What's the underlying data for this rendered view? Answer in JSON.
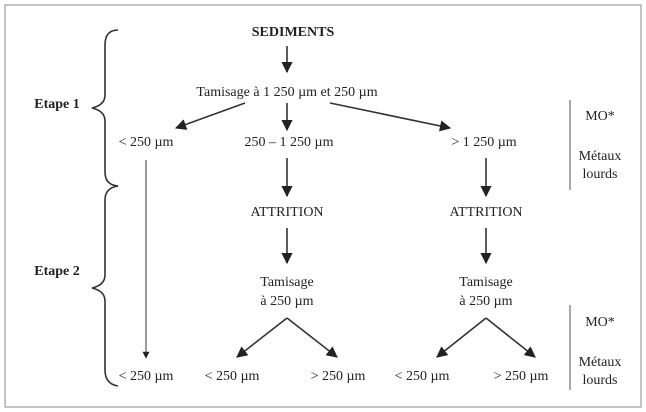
{
  "title": "SEDIMENTS",
  "stages": [
    "Etape 1",
    "Etape 2"
  ],
  "nodes": [
    "Tamisage à 1 250 µm et 250 µm",
    "< 250 µm",
    "250 – 1 250 µm",
    "> 1 250 µm",
    "ATTRITION",
    "ATTRITION",
    "Tamisage",
    "à 250 µm",
    "Tamisage",
    "à 250 µm",
    "< 250 µm",
    "< 250 µm",
    "> 250 µm",
    "< 250 µm",
    "> 250 µm"
  ],
  "notes": [
    [
      "MO*",
      "Métaux",
      "lourds"
    ],
    [
      "MO*",
      "Métaux",
      "lourds"
    ]
  ]
}
